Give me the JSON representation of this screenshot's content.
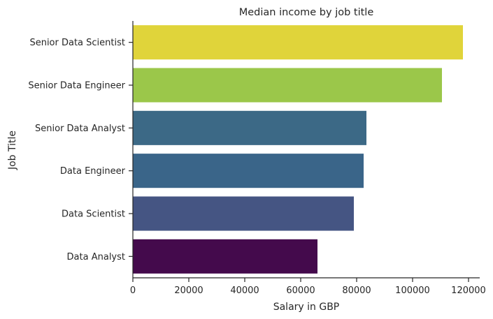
{
  "chart_data": {
    "type": "bar",
    "orientation": "horizontal",
    "title": "Median income by job title",
    "xlabel": "Salary in GBP",
    "ylabel": "Job Title",
    "xlim": [
      0,
      124000
    ],
    "xticks": [
      0,
      20000,
      40000,
      60000,
      80000,
      100000,
      120000
    ],
    "xtick_labels": [
      "0",
      "20000",
      "40000",
      "60000",
      "80000",
      "100000",
      "120000"
    ],
    "grid": false,
    "categories": [
      "Senior Data Scientist",
      "Senior Data Engineer",
      "Senior Data Analyst",
      "Data Engineer",
      "Data Scientist",
      "Data Analyst"
    ],
    "values": [
      118000,
      110500,
      83500,
      82500,
      79000,
      66000
    ],
    "colors": [
      "#e0d43a",
      "#9bc74a",
      "#3c6986",
      "#3a6589",
      "#455583",
      "#440a4c"
    ]
  }
}
